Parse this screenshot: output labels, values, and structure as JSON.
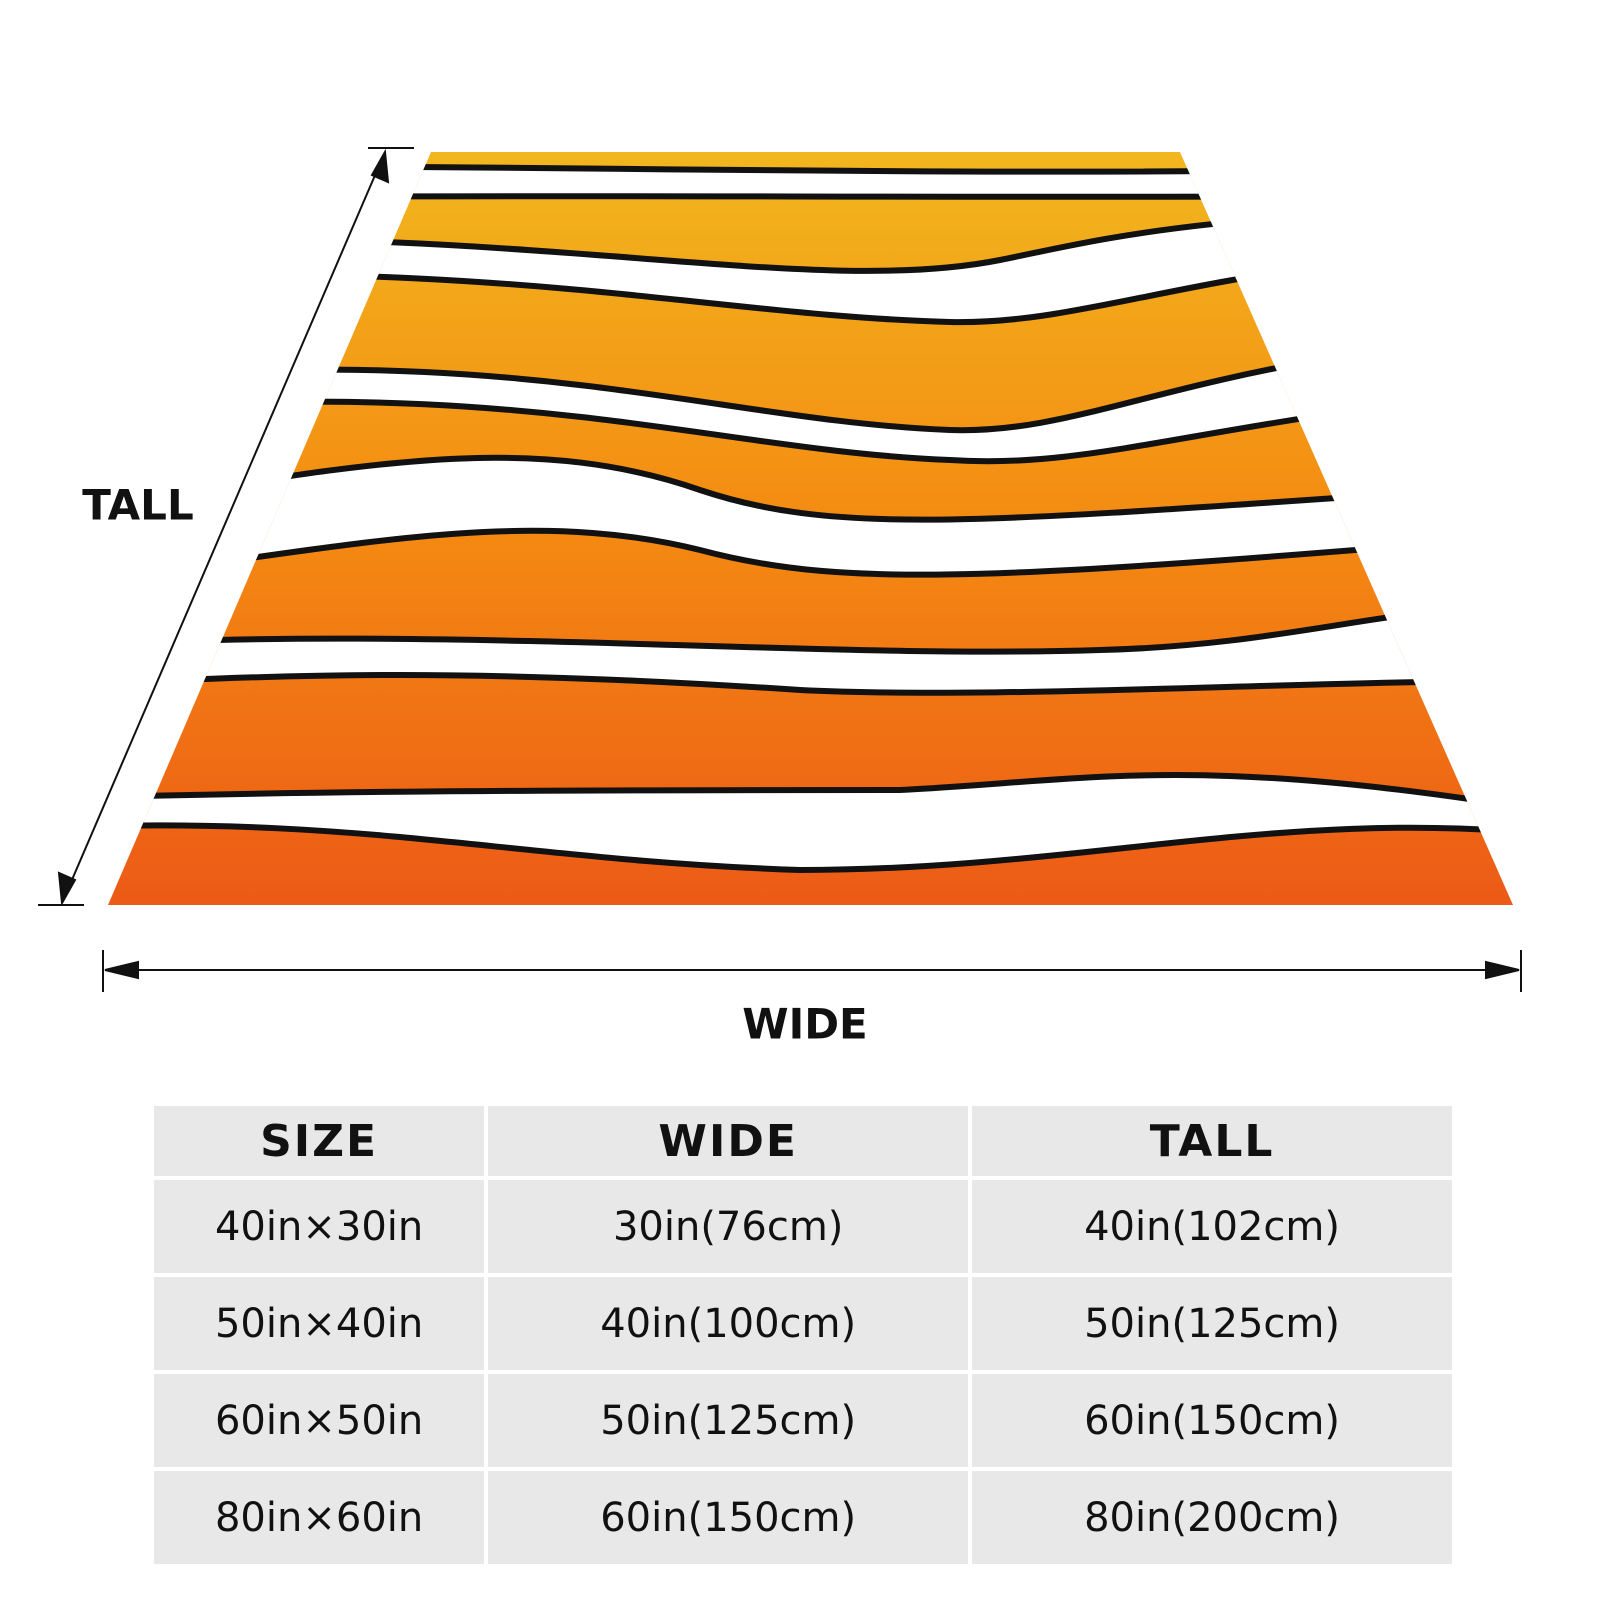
{
  "diagram": {
    "tall_label": "TALL",
    "wide_label": "WIDE"
  },
  "table": {
    "header": [
      "SIZE",
      "WIDE",
      "TALL"
    ],
    "rows": [
      [
        "40in×30in",
        "30in(76cm)",
        "40in(102cm)"
      ],
      [
        "50in×40in",
        "40in(100cm)",
        "50in(125cm)"
      ],
      [
        "60in×50in",
        "50in(125cm)",
        "60in(150cm)"
      ],
      [
        "80in×60in",
        "60in(150cm)",
        "80in(200cm)"
      ]
    ]
  }
}
